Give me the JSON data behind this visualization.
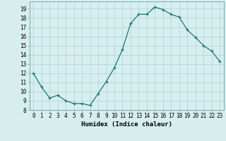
{
  "x": [
    0,
    1,
    2,
    3,
    4,
    5,
    6,
    7,
    8,
    9,
    10,
    11,
    12,
    13,
    14,
    15,
    16,
    17,
    18,
    19,
    20,
    21,
    22,
    23
  ],
  "y": [
    12,
    10.5,
    9.3,
    9.6,
    9.0,
    8.7,
    8.7,
    8.5,
    9.8,
    11.1,
    12.6,
    14.6,
    17.4,
    18.4,
    18.4,
    19.2,
    18.9,
    18.4,
    18.1,
    16.7,
    15.9,
    15.0,
    14.4,
    13.3
  ],
  "line_color": "#1a7a6e",
  "marker": "+",
  "marker_size": 3,
  "bg_color": "#d6eeee",
  "grid_color": "#b8d4d4",
  "xlabel": "Humidex (Indice chaleur)",
  "xlim": [
    -0.5,
    23.5
  ],
  "ylim": [
    8,
    19.8
  ],
  "yticks": [
    8,
    9,
    10,
    11,
    12,
    13,
    14,
    15,
    16,
    17,
    18,
    19
  ],
  "xticks": [
    0,
    1,
    2,
    3,
    4,
    5,
    6,
    7,
    8,
    9,
    10,
    11,
    12,
    13,
    14,
    15,
    16,
    17,
    18,
    19,
    20,
    21,
    22,
    23
  ],
  "xtick_labels": [
    "0",
    "1",
    "2",
    "3",
    "4",
    "5",
    "6",
    "7",
    "8",
    "9",
    "10",
    "11",
    "12",
    "13",
    "14",
    "15",
    "16",
    "17",
    "18",
    "19",
    "20",
    "21",
    "22",
    "23"
  ],
  "xlabel_fontsize": 6.5,
  "tick_fontsize": 5.5,
  "linewidth": 0.9,
  "markeredgewidth": 0.9
}
